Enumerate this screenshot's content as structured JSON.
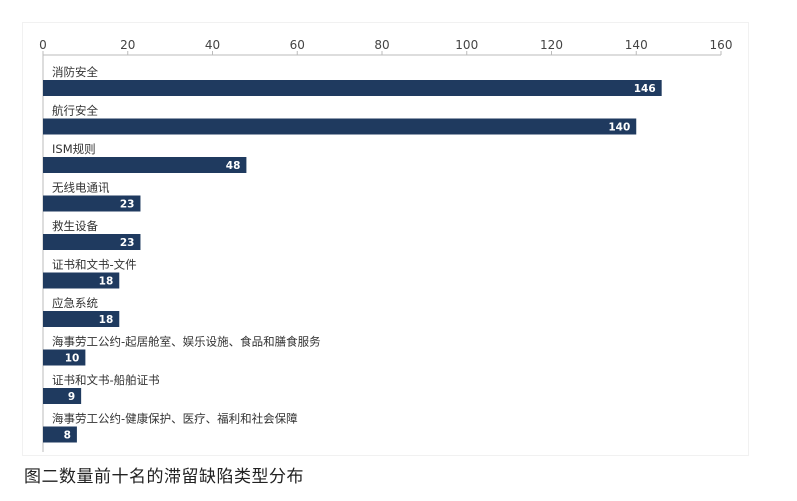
{
  "caption": "图二数量前十名的滞留缺陷类型分布",
  "colors": {
    "bar": "#1f3a5f",
    "axis": "#bbbbbb",
    "text": "#333333"
  },
  "chart_data": {
    "type": "bar",
    "orientation": "horizontal",
    "categories": [
      "消防安全",
      "航行安全",
      "ISM规则",
      "无线电通讯",
      "救生设备",
      "证书和文书-文件",
      "应急系统",
      "海事劳工公约-起居舱室、娱乐设施、食品和膳食服务",
      "证书和文书-船舶证书",
      "海事劳工公约-健康保护、医疗、福利和社会保障"
    ],
    "values": [
      146,
      140,
      48,
      23,
      23,
      18,
      18,
      10,
      9,
      8
    ],
    "xlim": [
      0,
      160
    ],
    "xticks": [
      0,
      20,
      40,
      60,
      80,
      100,
      120,
      140,
      160
    ],
    "xaxis_position": "top",
    "data_labels": true,
    "grid": false,
    "legend": "none"
  }
}
